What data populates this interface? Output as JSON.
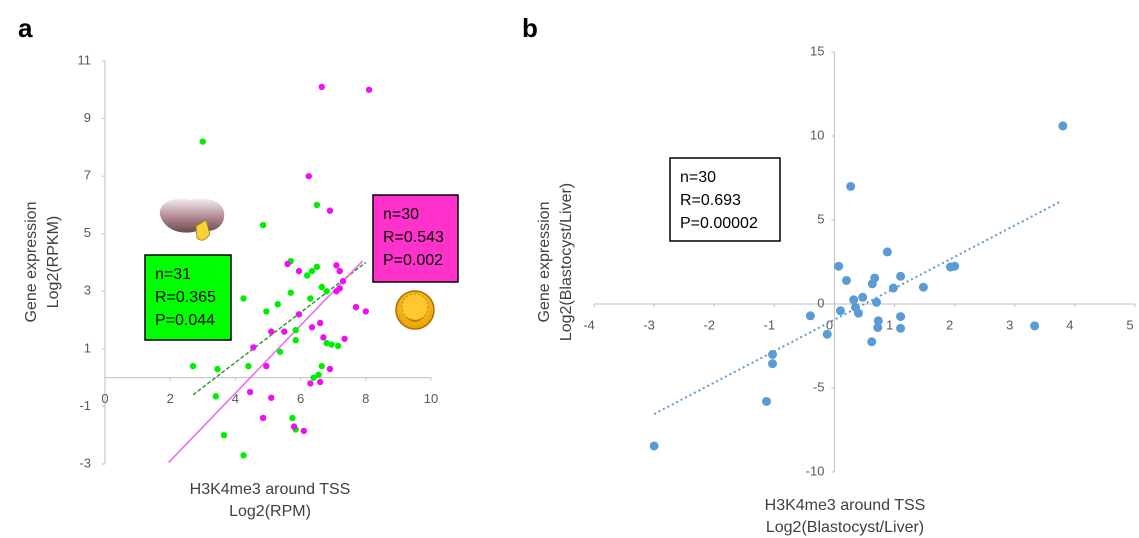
{
  "chart_data": [
    {
      "type": "scatter",
      "panel": "a",
      "xlabel": [
        "H3K4me3 around TSS",
        "Log2(RPM)"
      ],
      "ylabel": [
        "Gene expression",
        "Log2(RPKM)"
      ],
      "xlim": [
        0,
        10
      ],
      "xticks": [
        0,
        2,
        4,
        6,
        8,
        10
      ],
      "ylim": [
        -3,
        11
      ],
      "yticks": [
        -3,
        -1,
        1,
        3,
        5,
        7,
        9,
        11
      ],
      "series": [
        {
          "color": "#00ee00",
          "x": [
            3.0,
            4.85,
            6.5,
            2.7,
            3.45,
            3.4,
            3.65,
            4.25,
            4.25,
            4.95,
            5.3,
            5.37,
            5.7,
            5.7,
            5.85,
            6.2,
            6.35,
            6.5,
            6.3,
            6.65,
            6.8,
            5.85,
            6.55,
            6.65,
            6.4,
            6.8,
            6.95,
            7.15,
            5.75,
            5.85,
            4.4
          ],
          "values": [
            8.2,
            5.3,
            6.0,
            0.4,
            0.3,
            -0.65,
            -2.0,
            -2.7,
            2.75,
            2.3,
            2.55,
            0.9,
            2.95,
            4.05,
            1.65,
            3.55,
            3.7,
            3.85,
            2.75,
            3.15,
            3.0,
            1.3,
            0.1,
            0.4,
            0.0,
            1.2,
            1.15,
            1.1,
            -1.4,
            -1.8,
            0.4
          ]
        },
        {
          "color": "#ee11ee",
          "x": [
            6.65,
            8.1,
            6.25,
            6.9,
            5.6,
            5.95,
            7.1,
            7.2,
            7.3,
            7.1,
            5.1,
            5.5,
            4.55,
            6.35,
            6.6,
            6.7,
            7.35,
            7.7,
            8.0,
            5.95,
            4.95,
            4.45,
            4.85,
            5.1,
            5.8,
            6.1,
            6.3,
            6.6,
            6.9,
            7.2
          ],
          "values": [
            10.1,
            10.0,
            7.0,
            5.8,
            3.95,
            3.7,
            3.9,
            3.7,
            3.35,
            3.0,
            1.6,
            1.6,
            1.05,
            1.75,
            1.9,
            1.4,
            1.35,
            2.45,
            2.3,
            2.2,
            0.4,
            -0.5,
            -1.4,
            -0.7,
            -1.7,
            -1.85,
            -0.2,
            -0.15,
            0.3,
            3.1
          ]
        }
      ],
      "trendlines": [
        {
          "color": "#339933",
          "x": [
            2.7,
            8.0
          ],
          "y": [
            -0.6,
            4.0
          ]
        },
        {
          "color": "#ee66ee",
          "x": [
            1.95,
            7.9
          ],
          "y": [
            -2.95,
            4.05
          ]
        }
      ],
      "annotations": [
        {
          "lines": [
            "n=31",
            "R=0.365",
            "P=0.044"
          ],
          "color": "#00ff00"
        },
        {
          "lines": [
            "n=30",
            "R=0.543",
            "P=0.002"
          ],
          "color": "#ff33cc"
        }
      ]
    },
    {
      "type": "scatter",
      "panel": "b",
      "xlabel": [
        "H3K4me3 around TSS",
        "Log2(Blastocyst/Liver)"
      ],
      "ylabel": [
        "Gene expression",
        "Log2(Blastocyst/Liver)"
      ],
      "xlim": [
        -4,
        5
      ],
      "xticks": [
        -4,
        -3,
        -2,
        -1,
        0,
        1,
        2,
        3,
        4,
        5
      ],
      "ylim": [
        -10,
        15
      ],
      "yticks": [
        -10,
        -5,
        0,
        5,
        10,
        15
      ],
      "series": [
        {
          "color": "#5b9bd5",
          "x": [
            3.8,
            0.27,
            0.88,
            0.07,
            0.2,
            0.67,
            0.63,
            1.1,
            1.93,
            2.0,
            1.48,
            0.98,
            0.7,
            0.47,
            0.35,
            0.4,
            0.1,
            -0.4,
            0.73,
            0.72,
            1.1,
            1.1,
            0.62,
            3.33,
            -0.12,
            -1.03,
            -1.03,
            -1.13,
            -3.0,
            0.32
          ],
          "values": [
            10.6,
            7.0,
            3.1,
            2.25,
            1.4,
            1.55,
            1.2,
            1.65,
            2.2,
            2.25,
            1.0,
            0.95,
            0.1,
            0.4,
            -0.2,
            -0.55,
            -0.4,
            -0.7,
            -1.0,
            -1.4,
            -0.75,
            -1.45,
            -2.25,
            -1.3,
            -1.8,
            -3.0,
            -3.55,
            -5.8,
            -8.45,
            0.25
          ]
        }
      ],
      "trendlines": [
        {
          "color": "#5b9bd5",
          "x": [
            -3.0,
            3.76
          ],
          "y": [
            -6.55,
            6.1
          ]
        }
      ],
      "annotations": [
        {
          "lines": [
            "n=30",
            "R=0.693",
            "P=0.00002"
          ],
          "color": "#ffffff"
        }
      ]
    }
  ]
}
